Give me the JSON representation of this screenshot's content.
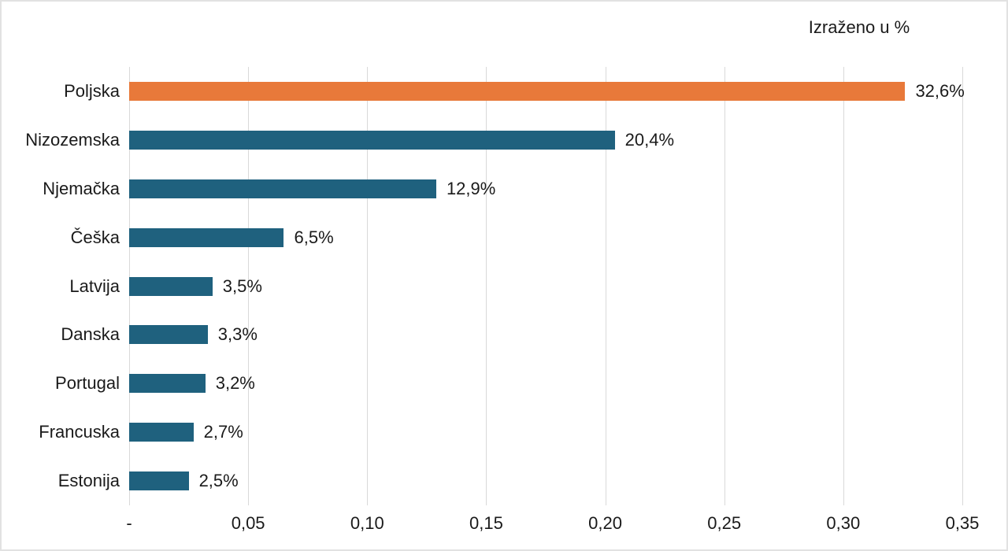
{
  "chart_data": {
    "type": "bar",
    "orientation": "horizontal",
    "title": "Izraženo u %",
    "categories": [
      "Poljska",
      "Nizozemska",
      "Njemačka",
      "Češka",
      "Latvija",
      "Danska",
      "Portugal",
      "Francuska",
      "Estonija"
    ],
    "values": [
      0.326,
      0.204,
      0.129,
      0.065,
      0.035,
      0.033,
      0.032,
      0.027,
      0.025
    ],
    "value_labels": [
      "32,6%",
      "20,4%",
      "12,9%",
      "6,5%",
      "3,5%",
      "3,3%",
      "3,2%",
      "2,7%",
      "2,5%"
    ],
    "x_tick_labels": [
      "-",
      "0,05",
      "0,10",
      "0,15",
      "0,20",
      "0,25",
      "0,30",
      "0,35"
    ],
    "x_tick_values": [
      0,
      0.05,
      0.1,
      0.15,
      0.2,
      0.25,
      0.3,
      0.35
    ],
    "xlim": [
      0,
      0.35
    ],
    "grid": true,
    "legend": false,
    "colors": {
      "highlight_bar": "#e8793a",
      "default_bar": "#1f617e",
      "gridline": "#d9d9d9",
      "text": "#1a1a1a",
      "frame_border": "#e2e2e2",
      "background": "#ffffff"
    },
    "highlight_index": 0
  }
}
